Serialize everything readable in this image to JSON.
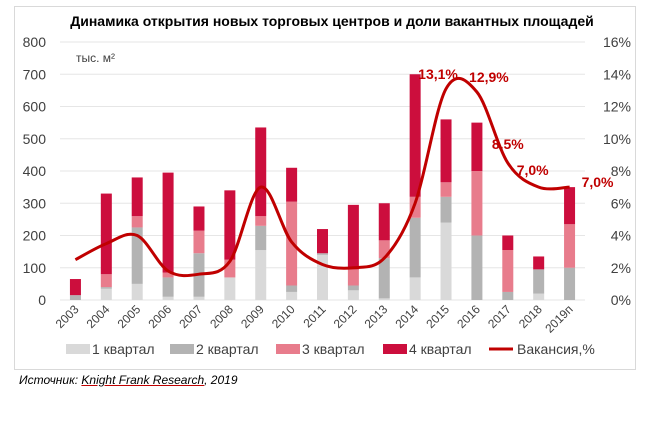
{
  "chart_data": {
    "type": "bar",
    "title": "Динамика открытия новых торговых центров и доли вакантных площадей",
    "unit_label": "тыс. м²",
    "categories": [
      "2003",
      "2004",
      "2005",
      "2006",
      "2007",
      "2008",
      "2009",
      "2010",
      "2011",
      "2012",
      "2013",
      "2014",
      "2015",
      "2016",
      "2017",
      "2018",
      "2019п"
    ],
    "stacked": true,
    "y_left": {
      "min": 0,
      "max": 800,
      "ticks": [
        "0",
        "100",
        "200",
        "300",
        "400",
        "500",
        "600",
        "700",
        "800"
      ]
    },
    "y_right": {
      "min": 0,
      "max": 16,
      "ticks": [
        "0%",
        "2%",
        "4%",
        "6%",
        "8%",
        "10%",
        "12%",
        "14%",
        "16%"
      ]
    },
    "series": [
      {
        "name": "1 квартал",
        "color": "#d9d9d9",
        "values": [
          0,
          35,
          50,
          10,
          10,
          70,
          155,
          25,
          140,
          30,
          5,
          70,
          240,
          0,
          0,
          20,
          0
        ]
      },
      {
        "name": "2 квартал",
        "color": "#b3b3b3",
        "values": [
          15,
          5,
          175,
          60,
          135,
          0,
          75,
          20,
          5,
          15,
          125,
          185,
          80,
          200,
          25,
          75,
          100
        ]
      },
      {
        "name": "3 квартал",
        "color": "#e87c8c",
        "values": [
          0,
          40,
          35,
          15,
          70,
          55,
          30,
          260,
          0,
          50,
          55,
          65,
          45,
          200,
          130,
          0,
          135
        ]
      },
      {
        "name": "4 квартал",
        "color": "#cc0e3d",
        "values": [
          50,
          250,
          120,
          310,
          75,
          215,
          275,
          105,
          75,
          200,
          115,
          380,
          195,
          150,
          45,
          40,
          115
        ]
      }
    ],
    "line": {
      "name": "Вакансия,%",
      "color": "#c00000",
      "values": [
        2.5,
        3.5,
        4.0,
        1.8,
        1.6,
        2.4,
        7.0,
        3.6,
        2.2,
        2.0,
        2.6,
        6.0,
        13.1,
        12.9,
        8.5,
        7.0,
        7.0
      ]
    },
    "data_labels": [
      {
        "index": 12,
        "text": "13,1%"
      },
      {
        "index": 13,
        "text": "12,9%"
      },
      {
        "index": 14,
        "text": "8,5%"
      },
      {
        "index": 15,
        "text": "7,0%"
      },
      {
        "index": 16,
        "text": "7,0%"
      }
    ],
    "legend_position": "bottom"
  },
  "source": {
    "prefix": "Источник: ",
    "org": "Knight Frank Research",
    "suffix": ", 2019"
  }
}
